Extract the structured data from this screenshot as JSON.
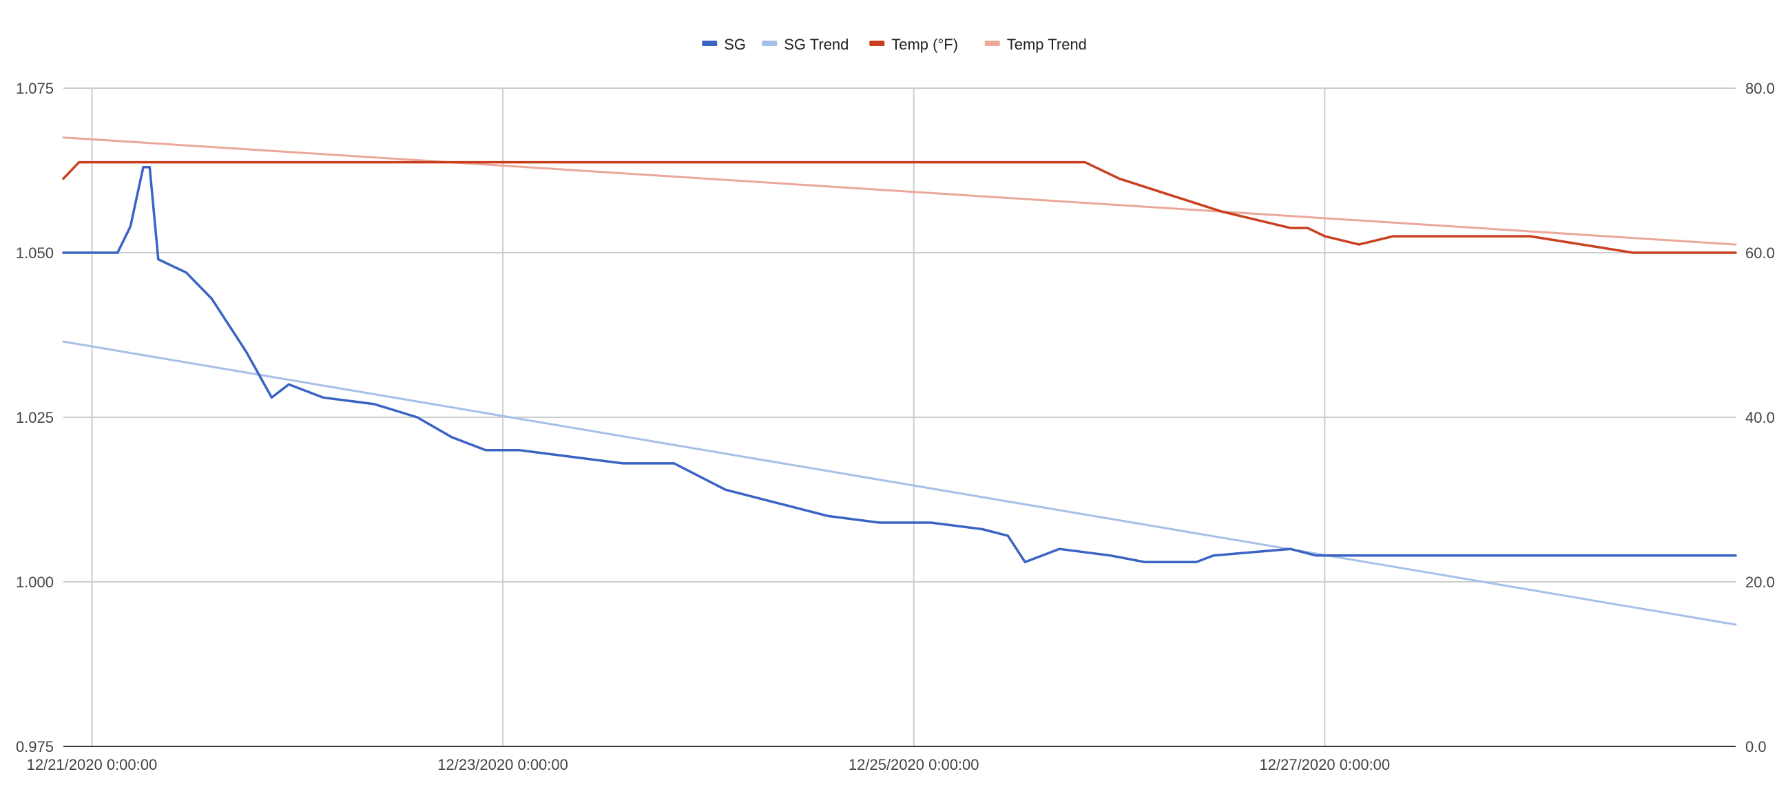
{
  "chart_data": {
    "type": "line",
    "title": "",
    "xlabel": "",
    "ylabel": "",
    "ylabel_right": "",
    "x_axis": {
      "min": "12/20/2020 20:40",
      "max": "12/29/2020 00:00",
      "tick_labels": [
        "12/21/2020 0:00:00",
        "12/23/2020 0:00:00",
        "12/25/2020 0:00:00",
        "12/27/2020 0:00:00"
      ],
      "tick_values": [
        "12/21/2020 0:00",
        "12/23/2020 0:00",
        "12/25/2020 0:00",
        "12/27/2020 0:00"
      ]
    },
    "y_left": {
      "ylim": [
        0.975,
        1.075
      ],
      "tick_labels": [
        "1.075",
        "1.050",
        "1.025",
        "1.000",
        "0.975"
      ],
      "tick_values": [
        1.075,
        1.05,
        1.025,
        1.0,
        0.975
      ]
    },
    "y_right": {
      "ylim": [
        0,
        80
      ],
      "tick_labels": [
        "80.0",
        "60.0",
        "40.0",
        "20.0",
        "0.0"
      ],
      "tick_values": [
        80,
        60,
        40,
        20,
        0
      ]
    },
    "grid": true,
    "legend_position": "top",
    "legend": [
      "SG",
      "SG Trend",
      "Temp (°F)",
      "Temp Trend"
    ],
    "series": [
      {
        "name": "SG",
        "axis": "left",
        "color": "#3a63c4",
        "points": [
          [
            "12/20/2020 20:40",
            1.05
          ],
          [
            "12/20/2020 23:00",
            1.05
          ],
          [
            "12/21/2020 3:00",
            1.05
          ],
          [
            "12/21/2020 4:30",
            1.054
          ],
          [
            "12/21/2020 6:00",
            1.063
          ],
          [
            "12/21/2020 6:45",
            1.063
          ],
          [
            "12/21/2020 7:45",
            1.049
          ],
          [
            "12/21/2020 11:00",
            1.047
          ],
          [
            "12/21/2020 14:00",
            1.043
          ],
          [
            "12/21/2020 18:00",
            1.035
          ],
          [
            "12/21/2020 21:00",
            1.028
          ],
          [
            "12/21/2020 23:00",
            1.03
          ],
          [
            "12/22/2020 3:00",
            1.028
          ],
          [
            "12/22/2020 9:00",
            1.027
          ],
          [
            "12/22/2020 14:00",
            1.025
          ],
          [
            "12/22/2020 18:00",
            1.022
          ],
          [
            "12/22/2020 22:00",
            1.02
          ],
          [
            "12/23/2020 2:00",
            1.02
          ],
          [
            "12/23/2020 8:00",
            1.019
          ],
          [
            "12/23/2020 14:00",
            1.018
          ],
          [
            "12/23/2020 20:00",
            1.018
          ],
          [
            "12/24/2020 2:00",
            1.014
          ],
          [
            "12/24/2020 8:00",
            1.012
          ],
          [
            "12/24/2020 14:00",
            1.01
          ],
          [
            "12/24/2020 20:00",
            1.009
          ],
          [
            "12/25/2020 2:00",
            1.009
          ],
          [
            "12/25/2020 8:00",
            1.008
          ],
          [
            "12/25/2020 11:00",
            1.007
          ],
          [
            "12/25/2020 13:00",
            1.003
          ],
          [
            "12/25/2020 17:00",
            1.005
          ],
          [
            "12/25/2020 23:00",
            1.004
          ],
          [
            "12/26/2020 3:00",
            1.003
          ],
          [
            "12/26/2020 9:00",
            1.003
          ],
          [
            "12/26/2020 11:00",
            1.004
          ],
          [
            "12/26/2020 20:00",
            1.005
          ],
          [
            "12/26/2020 23:00",
            1.004
          ],
          [
            "12/27/2020 12:00",
            1.004
          ],
          [
            "12/28/2020 12:00",
            1.004
          ],
          [
            "12/29/2020 0:00",
            1.004
          ]
        ]
      },
      {
        "name": "SG Trend",
        "axis": "left",
        "color": "#a7bfe6",
        "points": [
          [
            "12/20/2020 20:40",
            1.0365
          ],
          [
            "12/29/2020 0:00",
            0.9935
          ]
        ]
      },
      {
        "name": "Temp (°F)",
        "axis": "right",
        "color": "#c8401f",
        "points": [
          [
            "12/20/2020 20:40",
            69
          ],
          [
            "12/20/2020 22:30",
            71
          ],
          [
            "12/21/2020 0:00",
            71
          ],
          [
            "12/21/2020 2:00",
            71
          ],
          [
            "12/21/2020 5:00",
            71
          ],
          [
            "12/21/2020 7:00",
            71
          ],
          [
            "12/21/2020 8:00",
            71
          ],
          [
            "12/22/2020 0:00",
            71
          ],
          [
            "12/23/2020 0:00",
            71
          ],
          [
            "12/24/2020 0:00",
            71
          ],
          [
            "12/25/2020 0:00",
            71
          ],
          [
            "12/25/2020 20:00",
            71
          ],
          [
            "12/26/2020 0:00",
            69
          ],
          [
            "12/26/2020 6:00",
            67
          ],
          [
            "12/26/2020 12:00",
            65
          ],
          [
            "12/26/2020 16:00",
            64
          ],
          [
            "12/26/2020 20:00",
            63
          ],
          [
            "12/26/2020 22:00",
            63
          ],
          [
            "12/27/2020 0:00",
            62
          ],
          [
            "12/27/2020 4:00",
            61
          ],
          [
            "12/27/2020 8:00",
            62
          ],
          [
            "12/28/2020 0:00",
            62
          ],
          [
            "12/28/2020 12:00",
            60
          ],
          [
            "12/29/2020 0:00",
            60
          ]
        ]
      },
      {
        "name": "Temp Trend",
        "axis": "right",
        "color": "#eba899",
        "points": [
          [
            "12/20/2020 20:40",
            74
          ],
          [
            "12/29/2020 0:00",
            61
          ]
        ]
      }
    ]
  }
}
